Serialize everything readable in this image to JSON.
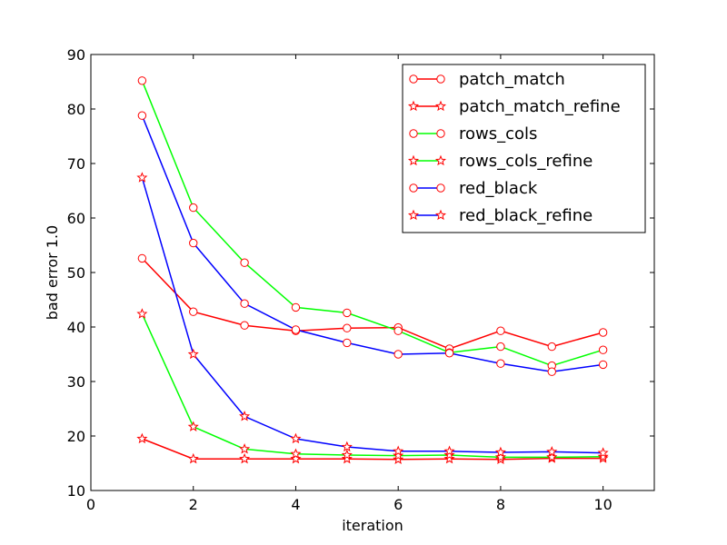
{
  "chart_data": {
    "type": "line",
    "xlabel": "iteration",
    "ylabel": "bad error 1.0",
    "xlim": [
      0,
      11
    ],
    "ylim": [
      10,
      90
    ],
    "xticks": [
      0,
      2,
      4,
      6,
      8,
      10
    ],
    "yticks": [
      10,
      20,
      30,
      40,
      50,
      60,
      70,
      80,
      90
    ],
    "grid": false,
    "legend_position": "top-right",
    "x": [
      1,
      2,
      3,
      4,
      5,
      6,
      7,
      8,
      9,
      10
    ],
    "series": [
      {
        "name": "patch_match",
        "color": "#ff0000",
        "marker": "circle",
        "values": [
          52.6,
          42.8,
          40.3,
          39.3,
          39.8,
          39.9,
          36.0,
          39.3,
          36.4,
          39.0
        ]
      },
      {
        "name": "patch_match_refine",
        "color": "#ff0000",
        "marker": "star",
        "values": [
          19.5,
          15.8,
          15.8,
          15.8,
          15.8,
          15.7,
          15.8,
          15.7,
          15.9,
          15.9
        ]
      },
      {
        "name": "rows_cols",
        "color": "#00ff00",
        "marker": "circle",
        "values": [
          85.2,
          61.9,
          51.8,
          43.6,
          42.6,
          39.3,
          35.3,
          36.4,
          32.9,
          35.8
        ]
      },
      {
        "name": "rows_cols_refine",
        "color": "#00ff00",
        "marker": "star",
        "values": [
          42.4,
          21.7,
          17.6,
          16.7,
          16.5,
          16.4,
          16.5,
          16.1,
          16.1,
          16.2
        ]
      },
      {
        "name": "red_black",
        "color": "#0000ff",
        "marker": "circle",
        "values": [
          78.8,
          55.4,
          44.3,
          39.5,
          37.1,
          35.0,
          35.2,
          33.3,
          31.8,
          33.1
        ]
      },
      {
        "name": "red_black_refine",
        "color": "#0000ff",
        "marker": "star",
        "values": [
          67.4,
          35.0,
          23.6,
          19.5,
          18.0,
          17.2,
          17.2,
          17.0,
          17.1,
          16.9
        ]
      }
    ]
  }
}
